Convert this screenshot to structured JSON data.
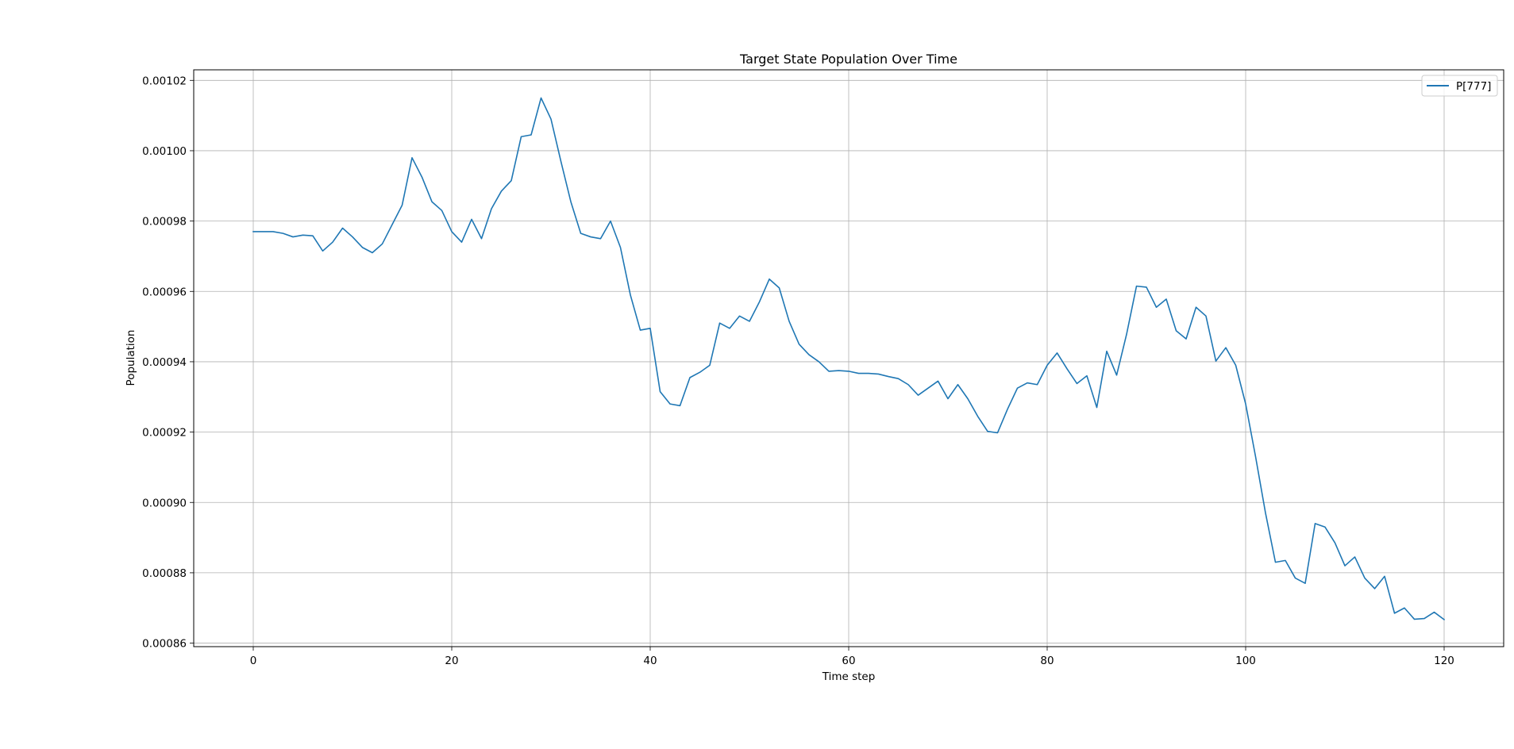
{
  "chart_data": {
    "type": "line",
    "title": "Target State Population Over Time",
    "xlabel": "Time step",
    "ylabel": "Population",
    "xlim": [
      -6,
      126
    ],
    "ylim": [
      0.000859,
      0.001023
    ],
    "xticks": [
      0,
      20,
      40,
      60,
      80,
      100,
      120
    ],
    "xtick_labels": [
      "0",
      "20",
      "40",
      "60",
      "80",
      "100",
      "120"
    ],
    "yticks": [
      0.00086,
      0.00088,
      0.0009,
      0.00092,
      0.00094,
      0.00096,
      0.00098,
      0.001,
      0.00102
    ],
    "ytick_labels": [
      "0.00086",
      "0.00088",
      "0.00090",
      "0.00092",
      "0.00094",
      "0.00096",
      "0.00098",
      "0.00100",
      "0.00102"
    ],
    "grid": true,
    "legend_position": "top-right",
    "series": [
      {
        "name": "P[777]",
        "color": "#1f77b4",
        "x": [
          0,
          1,
          2,
          3,
          4,
          5,
          6,
          7,
          8,
          9,
          10,
          11,
          12,
          13,
          14,
          15,
          16,
          17,
          18,
          19,
          20,
          21,
          22,
          23,
          24,
          25,
          26,
          27,
          28,
          29,
          30,
          31,
          32,
          33,
          34,
          35,
          36,
          37,
          38,
          39,
          40,
          41,
          42,
          43,
          44,
          45,
          46,
          47,
          48,
          49,
          50,
          51,
          52,
          53,
          54,
          55,
          56,
          57,
          58,
          59,
          60,
          61,
          62,
          63,
          64,
          65,
          66,
          67,
          68,
          69,
          70,
          71,
          72,
          73,
          74,
          75,
          76,
          77,
          78,
          79,
          80,
          81,
          82,
          83,
          84,
          85,
          86,
          87,
          88,
          89,
          90,
          91,
          92,
          93,
          94,
          95,
          96,
          97,
          98,
          99,
          100,
          101,
          102,
          103,
          104,
          105,
          106,
          107,
          108,
          109,
          110,
          111,
          112,
          113,
          114,
          115,
          116,
          117,
          118,
          119,
          120
        ],
        "y": [
          0.000977,
          0.000977,
          0.000977,
          0.0009765,
          0.0009755,
          0.000976,
          0.0009758,
          0.0009715,
          0.000974,
          0.000978,
          0.0009755,
          0.0009725,
          0.000971,
          0.0009735,
          0.000979,
          0.0009845,
          0.000998,
          0.0009925,
          0.0009855,
          0.000983,
          0.000977,
          0.000974,
          0.0009805,
          0.000975,
          0.0009835,
          0.0009885,
          0.0009915,
          0.001004,
          0.0010045,
          0.001015,
          0.001009,
          0.000997,
          0.0009855,
          0.0009765,
          0.0009755,
          0.000975,
          0.00098,
          0.0009725,
          0.000959,
          0.000949,
          0.0009495,
          0.0009315,
          0.000928,
          0.0009275,
          0.0009355,
          0.000937,
          0.000939,
          0.000951,
          0.0009495,
          0.000953,
          0.0009515,
          0.000957,
          0.0009635,
          0.000961,
          0.0009515,
          0.000945,
          0.000942,
          0.00094,
          0.0009373,
          0.0009375,
          0.0009373,
          0.0009367,
          0.0009367,
          0.0009365,
          0.0009358,
          0.0009352,
          0.0009335,
          0.0009305,
          0.0009325,
          0.0009345,
          0.0009295,
          0.0009335,
          0.0009295,
          0.0009245,
          0.0009202,
          0.0009198,
          0.0009265,
          0.0009325,
          0.000934,
          0.0009335,
          0.000939,
          0.0009425,
          0.000938,
          0.0009338,
          0.000936,
          0.000927,
          0.000943,
          0.0009362,
          0.0009478,
          0.0009615,
          0.0009612,
          0.0009555,
          0.0009578,
          0.0009488,
          0.0009465,
          0.0009555,
          0.000953,
          0.0009402,
          0.000944,
          0.000939,
          0.000928,
          0.000913,
          0.000897,
          0.000883,
          0.0008835,
          0.0008785,
          0.000877,
          0.000894,
          0.000893,
          0.0008885,
          0.000882,
          0.0008845,
          0.0008785,
          0.0008755,
          0.000879,
          0.0008685,
          0.00087,
          0.0008668,
          0.000867,
          0.0008688,
          0.0008667
        ]
      }
    ]
  }
}
